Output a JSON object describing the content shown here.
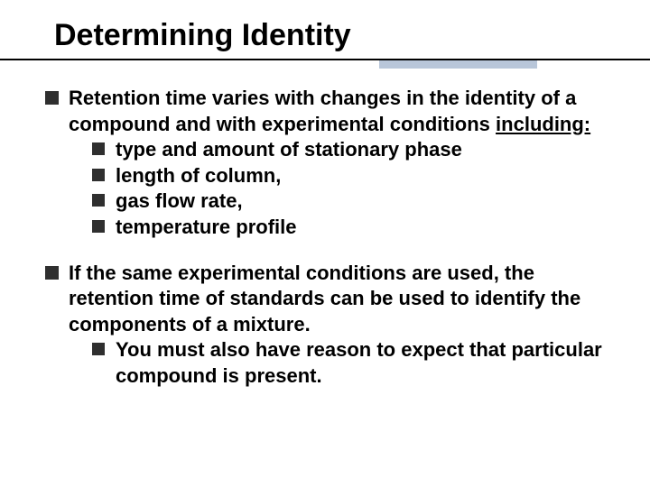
{
  "title": "Determining Identity",
  "colors": {
    "text": "#000000",
    "bullet": "#2f2f2f",
    "background": "#ffffff",
    "rule": "#000000",
    "accent_bar": "#b8c6d9"
  },
  "typography": {
    "font_family": "Comic Sans MS",
    "title_fontsize_pt": 26,
    "body_fontsize_pt": 17,
    "weight": "bold"
  },
  "bullets": [
    {
      "text_prefix": "Retention time varies with changes in the identity of a compound and with experimental conditions ",
      "text_underlined": "including:",
      "sub": [
        "type and amount of stationary phase",
        "length of column,",
        "gas flow rate,",
        "temperature profile"
      ]
    },
    {
      "text_full": "If the same experimental conditions are used, the retention time of standards can be used to identify the components of a mixture.",
      "sub": [
        "You must also have reason to expect that particular compound is present."
      ]
    }
  ]
}
